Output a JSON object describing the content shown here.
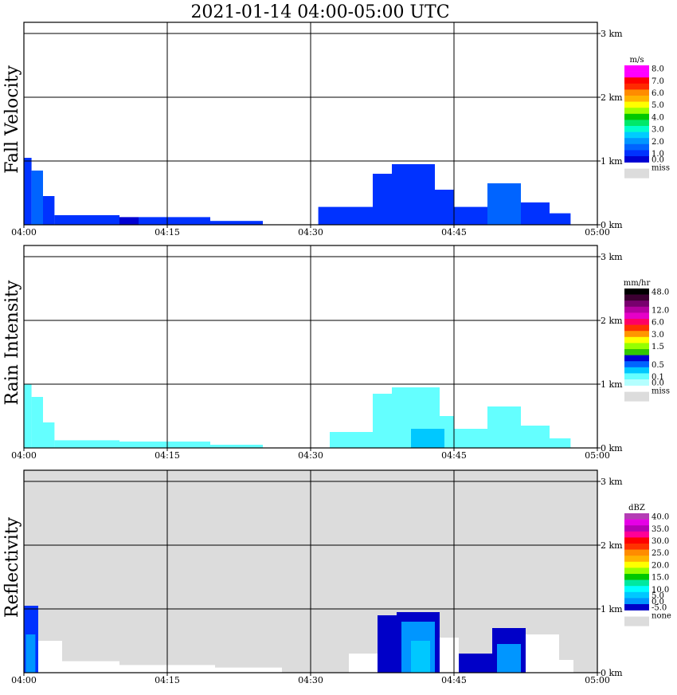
{
  "title": "2021-01-14   04:00-05:00 UTC",
  "x_ticks": [
    "04:00",
    "04:15",
    "04:30",
    "04:45",
    "05:00"
  ],
  "y_ticks": [
    "0 km",
    "1 km",
    "2 km",
    "3 km"
  ],
  "colors": {
    "frame": "#000000",
    "background": "#ffffff",
    "missing": "#dcdcdc",
    "sparse_echo": "#ffffff"
  },
  "chart_data": [
    {
      "type": "heatmap",
      "ylabel": "Fall Velocity",
      "x_range": [
        "04:00",
        "05:00"
      ],
      "y_range_km": [
        0,
        3.2
      ],
      "grid": true,
      "background": "#ffffff",
      "legend": {
        "unit": "m/s",
        "placement": "right",
        "entries": [
          {
            "label": "8.0",
            "color": "#ff00ff"
          },
          {
            "label": "",
            "color": "#ff00ff"
          },
          {
            "label": "7.0",
            "color": "#ff0000"
          },
          {
            "label": "",
            "color": "#ff2a00"
          },
          {
            "label": "6.0",
            "color": "#ff8c00"
          },
          {
            "label": "",
            "color": "#ffb400"
          },
          {
            "label": "5.0",
            "color": "#ffff00"
          },
          {
            "label": "",
            "color": "#9cff00"
          },
          {
            "label": "4.0",
            "color": "#00c800"
          },
          {
            "label": "",
            "color": "#00e86a"
          },
          {
            "label": "3.0",
            "color": "#00ffcc"
          },
          {
            "label": "",
            "color": "#00ccff"
          },
          {
            "label": "2.0",
            "color": "#0096ff"
          },
          {
            "label": "",
            "color": "#0064ff"
          },
          {
            "label": "1.0",
            "color": "#0032ff"
          },
          {
            "label": "0.0",
            "color": "#0000d2"
          }
        ],
        "missing_label": "miss"
      },
      "echoes": [
        {
          "t0": 0.0,
          "t1": 0.8,
          "top_km": 1.05,
          "color": "#0032ff"
        },
        {
          "t0": 0.8,
          "t1": 2.0,
          "top_km": 0.85,
          "color": "#0064ff"
        },
        {
          "t0": 2.0,
          "t1": 3.2,
          "top_km": 0.45,
          "color": "#0032ff"
        },
        {
          "t0": 3.2,
          "t1": 10.0,
          "top_km": 0.15,
          "color": "#0032ff"
        },
        {
          "t0": 10.0,
          "t1": 12.0,
          "top_km": 0.12,
          "color": "#0000d2"
        },
        {
          "t0": 12.0,
          "t1": 19.5,
          "top_km": 0.12,
          "color": "#0032ff"
        },
        {
          "t0": 19.5,
          "t1": 25.0,
          "top_km": 0.06,
          "color": "#0032ff"
        },
        {
          "t0": 30.8,
          "t1": 36.5,
          "top_km": 0.28,
          "color": "#0032ff"
        },
        {
          "t0": 36.5,
          "t1": 38.5,
          "top_km": 0.8,
          "color": "#0032ff"
        },
        {
          "t0": 38.5,
          "t1": 43.0,
          "top_km": 0.95,
          "color": "#0032ff"
        },
        {
          "t0": 43.0,
          "t1": 45.0,
          "top_km": 0.55,
          "color": "#0032ff"
        },
        {
          "t0": 45.0,
          "t1": 48.5,
          "top_km": 0.28,
          "color": "#0032ff"
        },
        {
          "t0": 48.5,
          "t1": 52.0,
          "top_km": 0.65,
          "color": "#0064ff"
        },
        {
          "t0": 52.0,
          "t1": 55.0,
          "top_km": 0.35,
          "color": "#0032ff"
        },
        {
          "t0": 55.0,
          "t1": 57.2,
          "top_km": 0.18,
          "color": "#0032ff"
        }
      ]
    },
    {
      "type": "heatmap",
      "ylabel": "Rain Intensity",
      "x_range": [
        "04:00",
        "05:00"
      ],
      "y_range_km": [
        0,
        3.2
      ],
      "grid": true,
      "background": "#ffffff",
      "legend": {
        "unit": "mm/hr",
        "placement": "right",
        "entries": [
          {
            "label": "48.0",
            "color": "#000000"
          },
          {
            "label": "",
            "color": "#3c0032"
          },
          {
            "label": "",
            "color": "#78006e"
          },
          {
            "label": "12.0",
            "color": "#b400a0"
          },
          {
            "label": "",
            "color": "#e600c8"
          },
          {
            "label": "6.0",
            "color": "#ff0064"
          },
          {
            "label": "",
            "color": "#ff3200"
          },
          {
            "label": "3.0",
            "color": "#ff9600"
          },
          {
            "label": "",
            "color": "#ffff00"
          },
          {
            "label": "1.5",
            "color": "#96ff00"
          },
          {
            "label": "",
            "color": "#32c800"
          },
          {
            "label": "",
            "color": "#0000d2"
          },
          {
            "label": "0.5",
            "color": "#0064ff"
          },
          {
            "label": "",
            "color": "#00c8ff"
          },
          {
            "label": "0.1",
            "color": "#64ffff"
          },
          {
            "label": "0.0",
            "color": "#b4ffff"
          }
        ],
        "missing_label": "miss"
      },
      "echoes": [
        {
          "t0": 0.0,
          "t1": 0.8,
          "top_km": 1.0,
          "color": "#64ffff"
        },
        {
          "t0": 0.8,
          "t1": 2.0,
          "top_km": 0.8,
          "color": "#64ffff"
        },
        {
          "t0": 2.0,
          "t1": 3.2,
          "top_km": 0.4,
          "color": "#64ffff"
        },
        {
          "t0": 3.2,
          "t1": 10.0,
          "top_km": 0.12,
          "color": "#64ffff"
        },
        {
          "t0": 10.0,
          "t1": 19.5,
          "top_km": 0.1,
          "color": "#64ffff"
        },
        {
          "t0": 19.5,
          "t1": 25.0,
          "top_km": 0.05,
          "color": "#64ffff"
        },
        {
          "t0": 32.0,
          "t1": 36.5,
          "top_km": 0.25,
          "color": "#64ffff"
        },
        {
          "t0": 36.5,
          "t1": 38.5,
          "top_km": 0.85,
          "color": "#64ffff"
        },
        {
          "t0": 38.5,
          "t1": 43.5,
          "top_km": 0.95,
          "color": "#64ffff"
        },
        {
          "t0": 43.5,
          "t1": 45.0,
          "top_km": 0.5,
          "color": "#64ffff"
        },
        {
          "t0": 45.0,
          "t1": 48.5,
          "top_km": 0.3,
          "color": "#64ffff"
        },
        {
          "t0": 48.5,
          "t1": 52.0,
          "top_km": 0.65,
          "color": "#64ffff"
        },
        {
          "t0": 52.0,
          "t1": 55.0,
          "top_km": 0.35,
          "color": "#64ffff"
        },
        {
          "t0": 55.0,
          "t1": 57.2,
          "top_km": 0.15,
          "color": "#64ffff"
        },
        {
          "t0": 40.5,
          "t1": 44.0,
          "top_km": 0.3,
          "color": "#00c8ff"
        }
      ]
    },
    {
      "type": "heatmap",
      "ylabel": "Reflectivity",
      "x_range": [
        "04:00",
        "05:00"
      ],
      "y_range_km": [
        0,
        3.2
      ],
      "grid": true,
      "background": "#dcdcdc",
      "legend": {
        "unit": "dBZ",
        "placement": "right",
        "entries": [
          {
            "label": "40.0",
            "color": "#b43cb4"
          },
          {
            "label": "",
            "color": "#e600e6"
          },
          {
            "label": "35.0",
            "color": "#b400b4"
          },
          {
            "label": "",
            "color": "#ff0096"
          },
          {
            "label": "30.0",
            "color": "#ff0000"
          },
          {
            "label": "",
            "color": "#ff3200"
          },
          {
            "label": "25.0",
            "color": "#ff8c00"
          },
          {
            "label": "",
            "color": "#ffb400"
          },
          {
            "label": "20.0",
            "color": "#ffff00"
          },
          {
            "label": "",
            "color": "#96ff00"
          },
          {
            "label": "15.0",
            "color": "#00c800"
          },
          {
            "label": "",
            "color": "#00e8a0"
          },
          {
            "label": "10.0",
            "color": "#00ffff"
          },
          {
            "label": "5.0",
            "color": "#00c8ff"
          },
          {
            "label": "0.0",
            "color": "#0096ff"
          },
          {
            "label": "-5.0",
            "color": "#0000c8"
          }
        ],
        "missing_label": "none"
      },
      "echoes": [
        {
          "t0": 0.0,
          "t1": 1.5,
          "top_km": 1.05,
          "color": "#0032ff"
        },
        {
          "t0": 0.2,
          "t1": 1.2,
          "top_km": 0.6,
          "color": "#0096ff"
        },
        {
          "t0": 1.5,
          "t1": 4.0,
          "top_km": 0.5,
          "color": "#ffffff"
        },
        {
          "t0": 4.0,
          "t1": 10.0,
          "top_km": 0.18,
          "color": "#ffffff"
        },
        {
          "t0": 10.0,
          "t1": 20.0,
          "top_km": 0.12,
          "color": "#ffffff"
        },
        {
          "t0": 20.0,
          "t1": 27.0,
          "top_km": 0.08,
          "color": "#ffffff"
        },
        {
          "t0": 34.0,
          "t1": 37.0,
          "top_km": 0.3,
          "color": "#ffffff"
        },
        {
          "t0": 37.0,
          "t1": 39.0,
          "top_km": 0.9,
          "color": "#0000c8"
        },
        {
          "t0": 39.0,
          "t1": 43.5,
          "top_km": 0.95,
          "color": "#0000c8"
        },
        {
          "t0": 39.5,
          "t1": 43.0,
          "top_km": 0.8,
          "color": "#0096ff"
        },
        {
          "t0": 40.5,
          "t1": 42.5,
          "top_km": 0.5,
          "color": "#00c8ff"
        },
        {
          "t0": 43.5,
          "t1": 45.5,
          "top_km": 0.55,
          "color": "#ffffff"
        },
        {
          "t0": 45.5,
          "t1": 49.0,
          "top_km": 0.3,
          "color": "#0000c8"
        },
        {
          "t0": 49.0,
          "t1": 52.5,
          "top_km": 0.7,
          "color": "#0000c8"
        },
        {
          "t0": 49.5,
          "t1": 52.0,
          "top_km": 0.45,
          "color": "#0096ff"
        },
        {
          "t0": 52.5,
          "t1": 56.0,
          "top_km": 0.6,
          "color": "#ffffff"
        },
        {
          "t0": 56.0,
          "t1": 57.5,
          "top_km": 0.2,
          "color": "#ffffff"
        }
      ]
    }
  ]
}
